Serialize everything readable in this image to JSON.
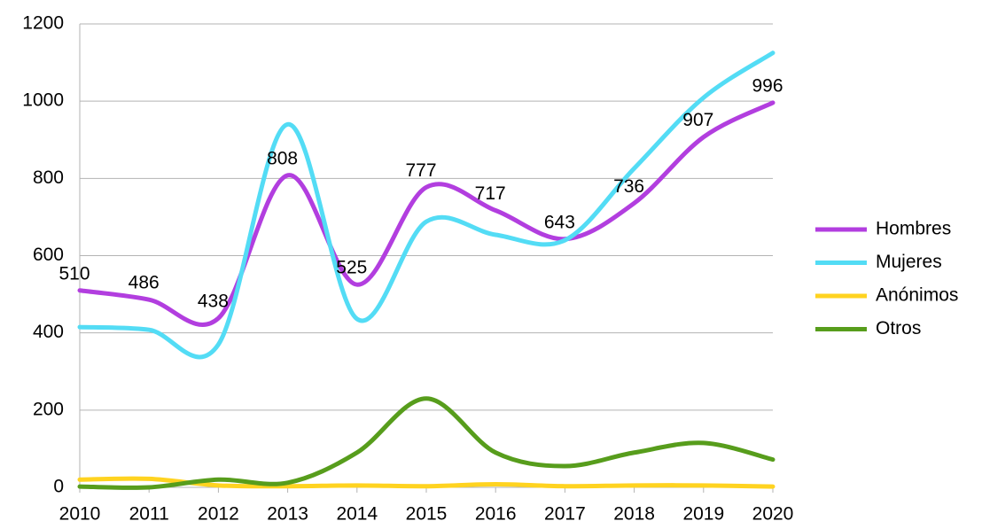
{
  "chart_data": {
    "type": "line",
    "x": [
      2010,
      2011,
      2012,
      2013,
      2014,
      2015,
      2016,
      2017,
      2018,
      2019,
      2020
    ],
    "xlim": [
      2010,
      2020
    ],
    "xticks": [
      2010,
      2011,
      2012,
      2013,
      2014,
      2015,
      2016,
      2017,
      2018,
      2019,
      2020
    ],
    "ylim": [
      0,
      1200
    ],
    "yticks": [
      0,
      200,
      400,
      600,
      800,
      1000,
      1200
    ],
    "grid": true,
    "smooth": true,
    "legend": "right",
    "series": [
      {
        "name": "Hombres",
        "color": "#b23edf",
        "values": [
          510,
          486,
          438,
          808,
          525,
          777,
          717,
          643,
          736,
          907,
          996
        ],
        "data_labels": true
      },
      {
        "name": "Mujeres",
        "color": "#53dcf5",
        "values": [
          415,
          408,
          370,
          940,
          436,
          688,
          654,
          640,
          826,
          1009,
          1125
        ]
      },
      {
        "name": "Anónimos",
        "color": "#ffd320",
        "values": [
          20,
          22,
          5,
          3,
          5,
          3,
          8,
          3,
          5,
          5,
          2
        ]
      },
      {
        "name": "Otros",
        "color": "#579d1c",
        "values": [
          2,
          0,
          20,
          12,
          90,
          230,
          90,
          55,
          90,
          115,
          72
        ]
      }
    ]
  }
}
